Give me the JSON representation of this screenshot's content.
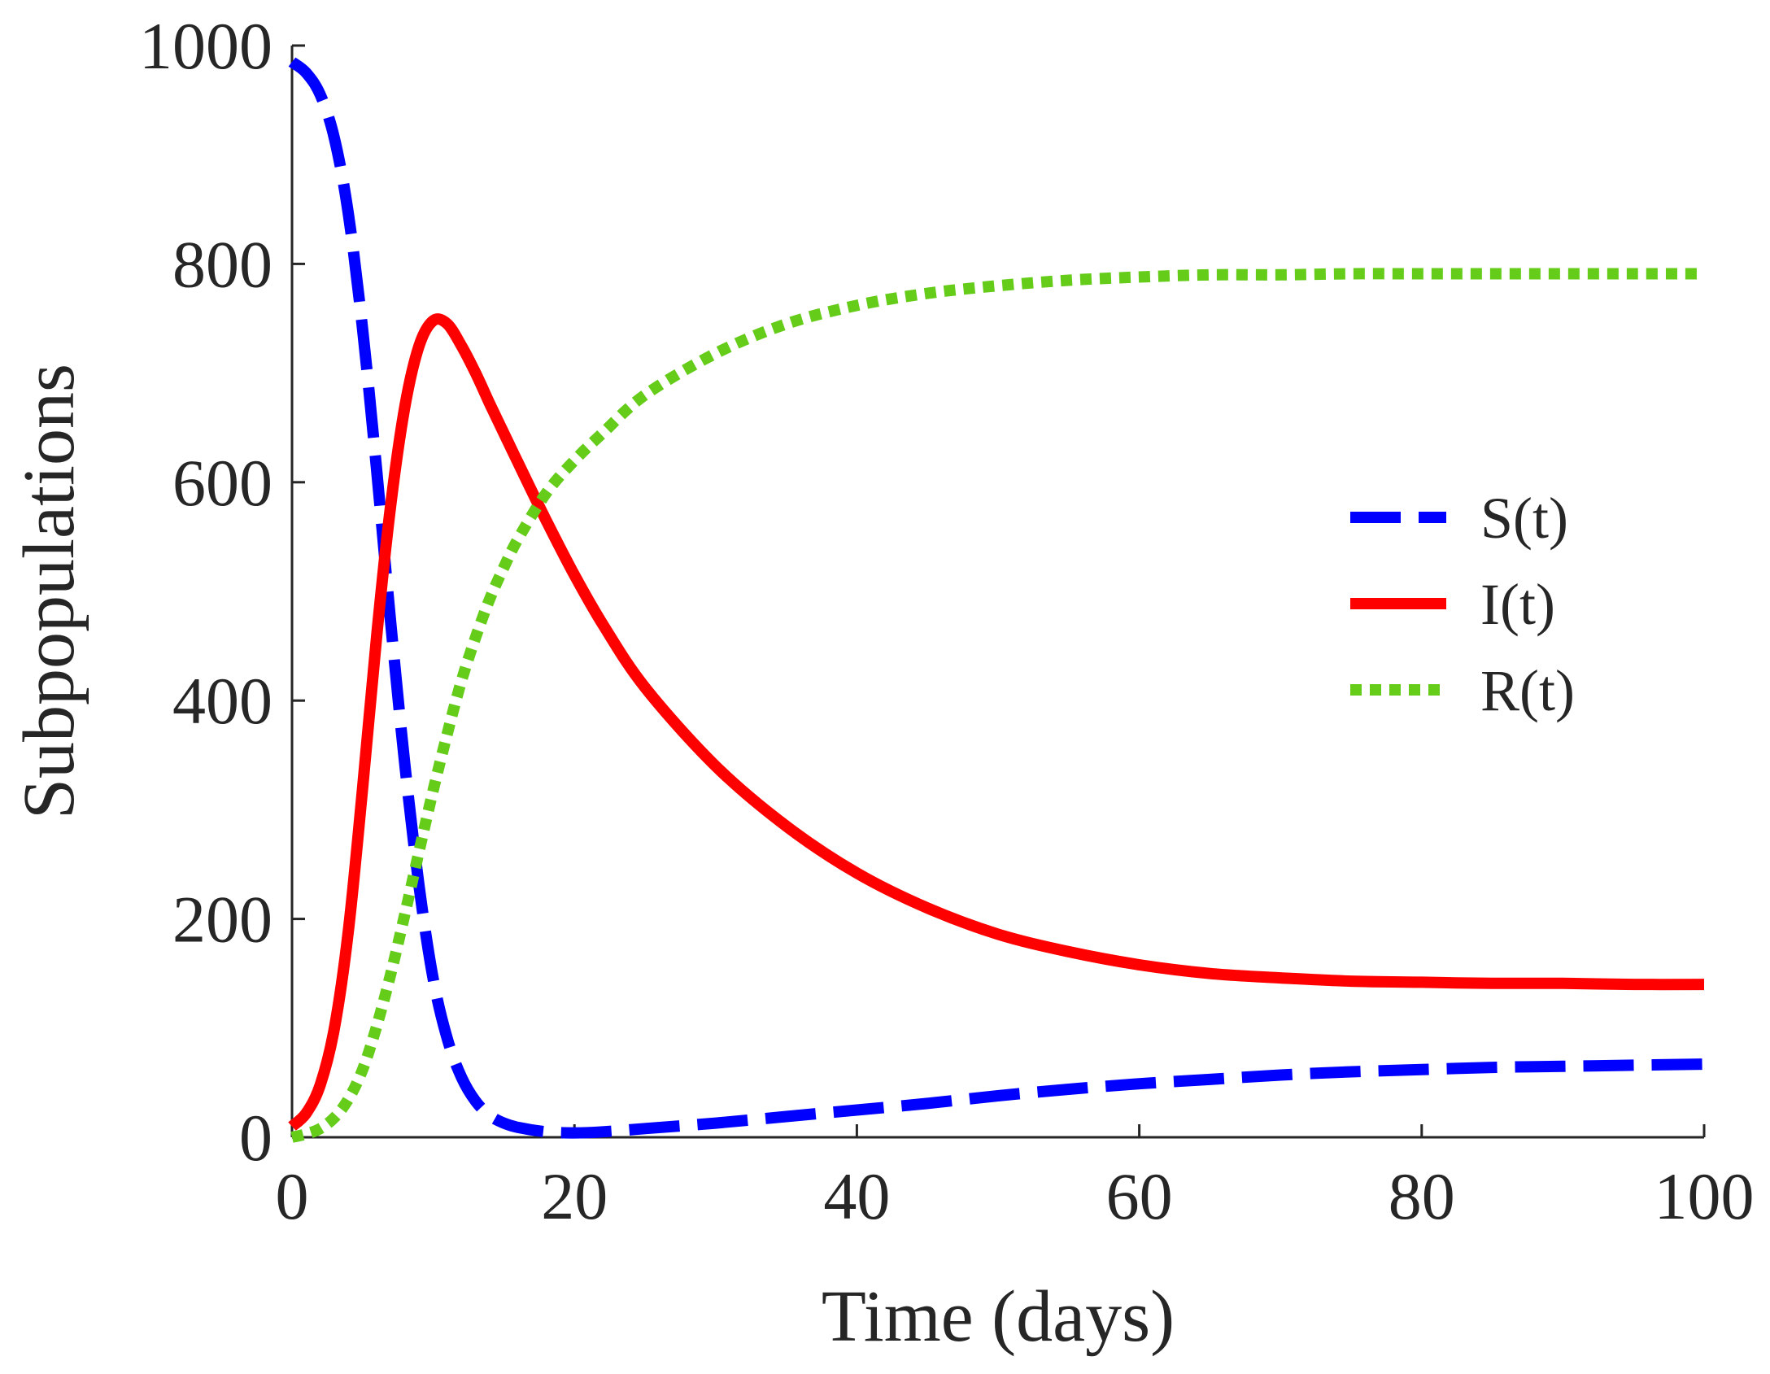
{
  "chart_data": {
    "type": "line",
    "title": "",
    "xlabel": "Time (days)",
    "ylabel": "Subpopulations",
    "xlim": [
      0,
      100
    ],
    "ylim": [
      0,
      1000
    ],
    "xticks": [
      0,
      20,
      40,
      60,
      80,
      100
    ],
    "yticks": [
      0,
      200,
      400,
      600,
      800,
      1000
    ],
    "xtick_labels": [
      "0",
      "20",
      "40",
      "60",
      "80",
      "100"
    ],
    "ytick_labels": [
      "0",
      "200",
      "400",
      "600",
      "800",
      "1000"
    ],
    "grid": false,
    "legend_position": "center-right",
    "x": [
      0,
      1,
      2,
      3,
      4,
      5,
      6,
      7,
      8,
      9,
      10,
      11,
      12,
      13,
      14,
      15,
      16,
      18,
      20,
      22,
      25,
      30,
      35,
      40,
      45,
      50,
      55,
      60,
      65,
      70,
      75,
      80,
      85,
      90,
      95,
      100
    ],
    "series": [
      {
        "name": "S(t)",
        "color": "#0000ff",
        "dash": "dashed",
        "values": [
          985,
          975,
          955,
          915,
          845,
          740,
          610,
          470,
          340,
          230,
          145,
          90,
          55,
          33,
          20,
          13,
          9,
          5,
          4,
          5,
          8,
          13,
          19,
          25,
          31,
          38,
          44,
          49,
          53,
          57,
          60,
          62,
          64,
          65,
          66,
          67
        ]
      },
      {
        "name": "I(t)",
        "color": "#ff0000",
        "dash": "solid",
        "values": [
          10,
          22,
          48,
          100,
          190,
          320,
          460,
          580,
          670,
          725,
          748,
          745,
          725,
          700,
          672,
          645,
          618,
          565,
          515,
          470,
          412,
          340,
          285,
          242,
          210,
          186,
          170,
          158,
          150,
          146,
          143,
          142,
          141,
          141,
          140,
          140
        ]
      },
      {
        "name": "R(t)",
        "color": "#66cc1a",
        "dash": "dotted",
        "values": [
          0,
          3,
          8,
          18,
          35,
          62,
          102,
          150,
          205,
          262,
          318,
          370,
          418,
          458,
          493,
          522,
          548,
          590,
          620,
          645,
          680,
          718,
          745,
          762,
          773,
          780,
          785,
          788,
          790,
          790,
          791,
          791,
          791,
          791,
          791,
          791
        ]
      }
    ]
  }
}
